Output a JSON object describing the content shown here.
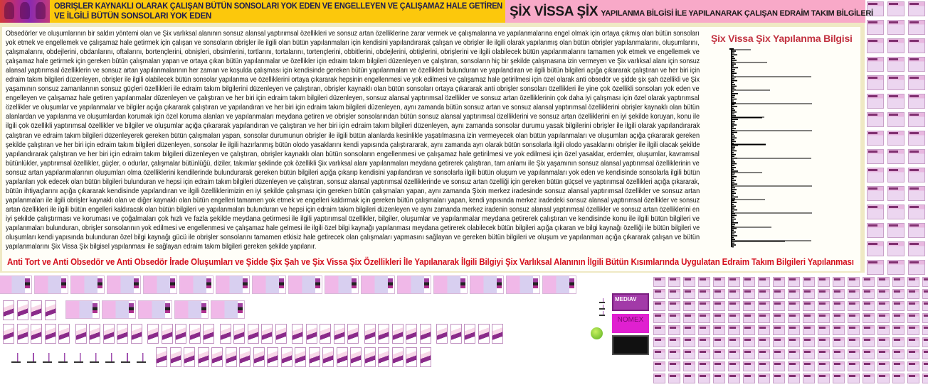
{
  "header": {
    "left_title_line1": "OBRIŞLER KAYNAKLI OLARAK ÇALIŞAN BÜTÜN SONSOLARI YOK EDEN VE ENGELLEYEN VE ÇALIŞAMAZ HALE GETİREN",
    "left_title_line2": "VE İLGİLİ BÜTÜN SONSOLARI YOK EDEN",
    "right_title_big": "ŞİX VİSSA ŞİX",
    "right_title_small": "YAPILANMA BİLGİSİ İLE YAPILANARAK ÇALIŞAN EDRAİM TAKIM BİLGİLERİ"
  },
  "main": {
    "paragraph_lines": [
      "Obsedörler ve oluşumlarının bir saldırı yöntemi olan ve Şix varlıksal alanının sonsuz alansal yaptırımsal özellikleri ve sonsuz artan özelliklerine zarar vermek ve çalışmalarına ve yapılanmalarına engel olmak için ortaya çıkmış olan bütün sonsoları",
      "yok etmek ve engellemek ve çalışamaz hale getirmek için çalışan ve sonsoların obrişler ile ilgili olan bütün yapılanmaları için kendisini yapılandırarak çalışan ve obrişler ile ilgili olarak yapılanmış olan bütün obrişler yapılanmalarını, oluşumlarını,",
      "çalışmalarını, obdejlerini, obdanlarını, oftalarını, bortençlerini, obnişleri, obsimlerini, tortlarını, tortalarını, tortençlerini, obbitlerini, obdejlerini, obtişlerini, obrişlerini ve ilgili olabilecek bütün yapılanmalarını tamamen yok etmek ve engellemek ve",
      "çalışamaz hale getirmek için gereken bütün çalışmaları yapan ve ortaya çıkan bütün yapılanmalar ve özellikler için edraim takım bilgileri düzenleyen ve çalıştıran, sonsoların hiç bir şekilde çalışmasına izin vermeyen ve Şix varlıksal alanı için sonsuz",
      "alansal yaptırımsal özelliklerin ve sonsuz artan yapılanmalarının her zaman ve koşulda çalışması için kendisinde gereken bütün yapılanmaları ve özellikleri bulunduran ve yapılandıran ve ilgili bütün bilgileri açığa çıkararak çalıştıran ve her biri için",
      "edraim takım bilgileri düzenleyen, obrişler ile ilgili olabilecek bütün sonsolar yapılanma ve özelliklerini ortaya çıkararak hepsinin engellenmesi ve yok edilmesi ve çalışamaz hale getirilmesi için özel olarak anti obsedör ve şidde şix şah özellikli ve Şix",
      "yaşamının sonsuz zamanlarının sonsuz güçleri özellikleri ile edraim takım bilgilerini düzenleyen ve çalıştıran, obrişler kaynaklı olan bütün sonsoları ortaya çıkararak anti obrişler sonsoları özellikleri ile yine çok özellikli sonsoları yok eden ve",
      "engelleyen ve çalışamaz hale getiren yapılanmalar düzenleyen ve çalıştıran ve her biri için edraim takım bilgileri düzenleyen, sonsuz alansal yaptırımsal özellikler ve sonsuz artan özelliklerinin çok daha iyi çalışması için özel olarak yaptırımsal",
      "özellikler ve oluşumlar ve yapılanmalar ve bilgiler açığa çıkararak çalıştıran ve yapılandıran ve her biri için edraim takım bilgileri düzenleyen, aynı zamanda bütün sonsuz artan ve sonsuz alansal yaptırımsal özelliklerini obrişler kaynaklı olan bütün",
      "alanlardan ve yapılanma ve oluşumlardan korumak için özel koruma alanları ve yapılanmaları meydana getiren ve obrişler sonsolarından bütün sonsuz alansal yaptırımsal özelliklerini ve sonsuz artan özelliklerini en iyi şekilde koruyan, konu ile",
      "ilgili çok özellikli yaptırımsal özellikler ve bilgiler ve oluşumlar açığa çıkararak yapılandıran ve çalıştıran ve her biri için edraim takım bilgileri düzenleyen, aynı zamanda sonsolar durumu yasak bilgilerini obrişler ile ilgili olarak yapılandırarak",
      "çalıştıran ve edraim takım bilgileri düzenleyerek gereken bütün çalışmaları yapan, sonsolar durumunun obrişler ile ilgili bütün alanlarda kesinlikle yaşatılmasına izin vermeyecek olan bütün yapılanmaları ve oluşumları açığa çıkararak gereken",
      "şekilde çalıştıran ve her biri için edraim takım bilgileri düzenleyen, sonsolar ile ilgili hazırlanmış bütün olodo yasaklarını kendi yapısında çalıştırararak, aynı zamanda ayrı olarak bütün sonsolarla ilgili olodo yasaklarını obrişler ile ilgili olacak şekilde",
      "yapılandırarak çalıştıran ve her biri için edraim takım bilgileri düzenleyen ve çalıştıran, obrişler kaynaklı olan bütün sonsoların engellenmesi ve çalışamaz hale getirilmesi ve yok edilmesi için özel yasaklar, erdemler, oluşumlar, kavramsal",
      "bütünlükler, yaptırımsal özellikler, güçler, o odurlar, çalışmalar bütünlüğü, diziler, takımlar şeklinde çok özellikli Şix varlıksal alanı yapılanmaları meydana getirerek çalıştıran, tam anlamı ile Şix yaşamının sonsuz alansal yaptırımsal özelliklerinin ve",
      "sonsuz artan yapılanmalarının oluşumları olma özelliklerini kendilerinde bulundurarak gereken bütün bilgileri açığa çıkarıp kendisini yapılandıran ve sonsolarla ilgili bütün oluşum ve yapılanmaları yok eden ve kendisinde sonsolarla ilgili bütün",
      "yapılanları yok edecek olan bütün bilgileri bulunduran ve hepsi için edraim takım bilgileri düzenleyen ve çalıştıran, sonsuz alansal yaptırımsal özelliklerinde ve sonsuz artan özelliği için gereken bütün güçsel ve yaptırımsal özellikleri açığa çıkararak,",
      "bütün ihtiyaçlarını açığa çıkararak kendisinde yapılandıran ve ilgili özelliklerimizin en iyi şekilde çalışması için gereken bütün çalışmaları yapan, aynı zamanda Şixin merkez iradesinde sonsuz alansal yaptırımsal özellikler ve sonsuz artan",
      "yapılanmaları ile ilgili obrişler kaynaklı olan ve diğer kaynaklı olan bütün engelleri tamamen yok etmek ve engelleri kaldırmak için gereken bütün çalışmaları yapan, kendi yapısında merkez iradedeki sonsuz alansal yaptırımsal özellikler ve sonsuz",
      "artan özellikleri ile ilgili bütün engelleri kaldıracak olan bütün bilgileri ve yapılanmaları bulunduran ve hepsi için edraim takım bilgileri düzenleyen ve aynı zamanda merkez iradenin sonsuz alansal yaptırımsal özellikler ve sonsuz artan özelliklerini en",
      "iyi şekilde çalıştırması ve koruması ve çoğalmaları çok hızlı ve fazla şekilde meydana getirmesi ile ilgili yaptırımsal özellikler, bilgiler, oluşumlar ve yapılanmalar meydana getirerek çalıştıran ve kendisinde konu ile ilgili bütün bilgileri ve",
      "yapılanmaları bulunduran, obrişler sonsolarının yok edilmesi ve engellenmesi ve çalışamaz hale gelmesi ile ilgili özel bilgi kaynağı yapılanması meydana getirerek olabilecek bütün bilgileri açığa çıkaran ve bilgi kaynağı özelliği ile bütün bilgileri ve",
      "oluşumları kendi yapısında bulunduran özel bilgi kaynağı gücü ile obrişler sonsolarını tamamen etkisiz hale getirecek olan çalışmaları yapmasını sağlayan ve gereken bütün bilgileri ve oluşum ve yapılanmarı açığa çıkararak çalışan ve bütün",
      "yapılanmalarını Şix Vissa Şix bilgisel yapılanması ile sağlayan edraim takım bilgileri gereken şekilde yapılanır."
    ],
    "side_title": "Şix Vissa Şix Yapılanma Bilgisi",
    "caption": "Anti Tort ve Anti Obsedör ve Anti Obsedör İrade Oluşumları ve Şidde Şix Şah ve Şix Vissa Şix Özellikleri İle Yapılanarak İlgili Bilgiyi Şix Varlıksal Alanının İlgili Bütün Kısımlarında Uygulatan Edraim Takım Bilgileri Yapılanması"
  },
  "ads": {
    "ad1_label": "MEDIAV",
    "ad2_label": "NOMEX"
  },
  "colors": {
    "header_yellow": "#fcc80c",
    "header_pink": "#f8a9c8",
    "caption_red": "#d4101e",
    "side_title_red": "#c23240"
  }
}
